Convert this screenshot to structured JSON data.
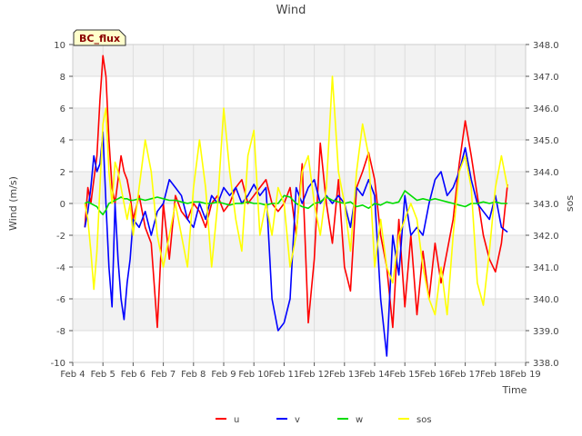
{
  "chart_data": {
    "type": "line",
    "title": "Wind",
    "xlabel": "Time",
    "ylabel_left": "Wind (m/s)",
    "ylabel_right": "sos",
    "badge": "BC_flux",
    "x_range": [
      "Feb 4",
      "Feb 19"
    ],
    "ylim_left": [
      -10,
      10
    ],
    "ylim_right": [
      338.0,
      348.0
    ],
    "x_ticks": [
      "Feb 4",
      "Feb 5",
      "Feb 6",
      "Feb 7",
      "Feb 8",
      "Feb 9",
      "Feb 10",
      "Feb 11",
      "Feb 12",
      "Feb 13",
      "Feb 14",
      "Feb 15",
      "Feb 16",
      "Feb 17",
      "Feb 18",
      "Feb 19"
    ],
    "y_ticks_left": [
      "-10",
      "-8",
      "-6",
      "-4",
      "-2",
      "0",
      "2",
      "4",
      "6",
      "8",
      "10"
    ],
    "y_ticks_right": [
      "338.0",
      "339.0",
      "340.0",
      "341.0",
      "342.0",
      "343.0",
      "344.0",
      "345.0",
      "346.0",
      "347.0",
      "348.0"
    ],
    "grid": true,
    "legend_position": "bottom-center",
    "x_day_offset": [
      0.4,
      0.5,
      0.6,
      0.7,
      0.8,
      0.9,
      1.0,
      1.1,
      1.2,
      1.3,
      1.4,
      1.5,
      1.6,
      1.7,
      1.8,
      1.9,
      2.0,
      2.2,
      2.4,
      2.6,
      2.8,
      3.0,
      3.2,
      3.4,
      3.6,
      3.8,
      4.0,
      4.2,
      4.4,
      4.6,
      4.8,
      5.0,
      5.2,
      5.4,
      5.6,
      5.8,
      6.0,
      6.2,
      6.4,
      6.6,
      6.8,
      7.0,
      7.2,
      7.4,
      7.6,
      7.8,
      8.0,
      8.2,
      8.4,
      8.6,
      8.8,
      9.0,
      9.2,
      9.4,
      9.6,
      9.8,
      10.0,
      10.2,
      10.4,
      10.6,
      10.8,
      11.0,
      11.2,
      11.4,
      11.6,
      11.8,
      12.0,
      12.2,
      12.4,
      12.6,
      12.8,
      13.0,
      13.2,
      13.4,
      13.6,
      13.8,
      14.0,
      14.2,
      14.4
    ],
    "series": [
      {
        "name": "u",
        "color": "#ff0000",
        "axis": "left",
        "values": [
          -1.5,
          1.0,
          0.0,
          1.5,
          3.0,
          6.5,
          9.3,
          8.0,
          4.0,
          1.0,
          0.0,
          1.5,
          3.0,
          2.0,
          1.5,
          0.5,
          -1.0,
          0.5,
          -1.5,
          -2.5,
          -7.8,
          0.0,
          -3.5,
          0.5,
          -0.5,
          -1.0,
          0.0,
          -0.5,
          -1.5,
          0.0,
          0.5,
          -0.5,
          0.0,
          1.0,
          1.5,
          0.0,
          0.5,
          1.0,
          1.5,
          0.0,
          -0.5,
          0.0,
          1.0,
          -2.0,
          2.5,
          -7.5,
          -3.5,
          3.8,
          0.0,
          -2.5,
          1.5,
          -4.0,
          -5.5,
          1.0,
          2.0,
          3.2,
          1.5,
          -2.0,
          -4.0,
          -7.8,
          -1.0,
          -6.5,
          -2.0,
          -7.0,
          -3.0,
          -6.0,
          -2.5,
          -5.0,
          -3.0,
          -1.0,
          2.5,
          5.2,
          3.0,
          0.5,
          -2.0,
          -3.5,
          -4.3,
          -2.5,
          1.2
        ]
      },
      {
        "name": "v",
        "color": "#0000ff",
        "axis": "left",
        "values": [
          -1.5,
          -0.5,
          1.0,
          3.0,
          2.0,
          2.5,
          4.5,
          0.0,
          -4.0,
          -6.5,
          0.0,
          -3.5,
          -6.0,
          -7.3,
          -5.0,
          -3.5,
          -1.0,
          -1.5,
          -0.5,
          -2.0,
          -0.5,
          0.0,
          1.5,
          1.0,
          0.5,
          -1.0,
          -1.5,
          0.0,
          -1.0,
          0.5,
          0.0,
          1.0,
          0.5,
          1.0,
          0.0,
          0.5,
          1.2,
          0.5,
          1.0,
          -6.0,
          -8.0,
          -7.5,
          -6.0,
          1.0,
          0.0,
          1.0,
          1.5,
          0.0,
          0.5,
          0.0,
          0.5,
          0.0,
          -1.5,
          1.0,
          0.5,
          1.5,
          0.5,
          -6.0,
          -9.6,
          -2.0,
          -4.5,
          0.5,
          -2.0,
          -1.5,
          -2.0,
          0.0,
          1.5,
          2.0,
          0.5,
          1.0,
          2.0,
          3.5,
          1.5,
          0.0,
          -0.5,
          -1.0,
          0.5,
          -1.5,
          -1.8
        ]
      },
      {
        "name": "w",
        "color": "#00dd00",
        "axis": "left",
        "values": [
          0.0,
          0.1,
          0.0,
          -0.1,
          -0.2,
          -0.5,
          -0.7,
          -0.4,
          0.0,
          0.1,
          0.2,
          0.3,
          0.4,
          0.3,
          0.3,
          0.2,
          0.2,
          0.3,
          0.2,
          0.3,
          0.4,
          0.3,
          0.2,
          0.2,
          0.1,
          0.0,
          0.1,
          0.1,
          0.0,
          0.0,
          0.1,
          0.0,
          -0.1,
          0.0,
          0.0,
          0.1,
          0.0,
          0.0,
          -0.1,
          0.0,
          0.0,
          0.5,
          0.4,
          0.0,
          -0.2,
          -0.3,
          0.0,
          0.1,
          0.4,
          0.2,
          0.1,
          0.0,
          0.1,
          -0.2,
          -0.1,
          -0.3,
          0.0,
          -0.1,
          0.1,
          0.0,
          0.1,
          0.8,
          0.5,
          0.2,
          0.3,
          0.2,
          0.3,
          0.2,
          0.1,
          0.0,
          -0.1,
          -0.2,
          0.0,
          0.0,
          0.1,
          0.0,
          0.1,
          0.0,
          0.0
        ]
      },
      {
        "name": "sos",
        "color": "#ffff00",
        "axis": "right",
        "values": [
          343.0,
          342.5,
          341.5,
          340.3,
          341.5,
          343.5,
          345.5,
          346.0,
          344.0,
          343.0,
          344.3,
          344.0,
          343.5,
          343.0,
          342.5,
          343.0,
          342.0,
          343.5,
          345.0,
          344.0,
          342.0,
          341.0,
          342.0,
          343.0,
          342.0,
          341.0,
          343.5,
          345.0,
          343.5,
          341.0,
          343.0,
          346.0,
          344.0,
          342.5,
          341.5,
          344.5,
          345.3,
          342.0,
          343.0,
          342.0,
          343.5,
          343.0,
          341.0,
          342.0,
          344.0,
          344.5,
          343.0,
          342.0,
          343.5,
          347.0,
          344.0,
          343.0,
          341.5,
          344.0,
          345.5,
          344.5,
          341.0,
          342.5,
          341.0,
          340.5,
          342.0,
          342.5,
          343.0,
          342.5,
          341.0,
          340.0,
          339.5,
          341.0,
          339.5,
          342.0,
          344.0,
          344.5,
          343.5,
          340.5,
          339.8,
          341.5,
          343.5,
          344.5,
          343.5
        ]
      }
    ]
  }
}
